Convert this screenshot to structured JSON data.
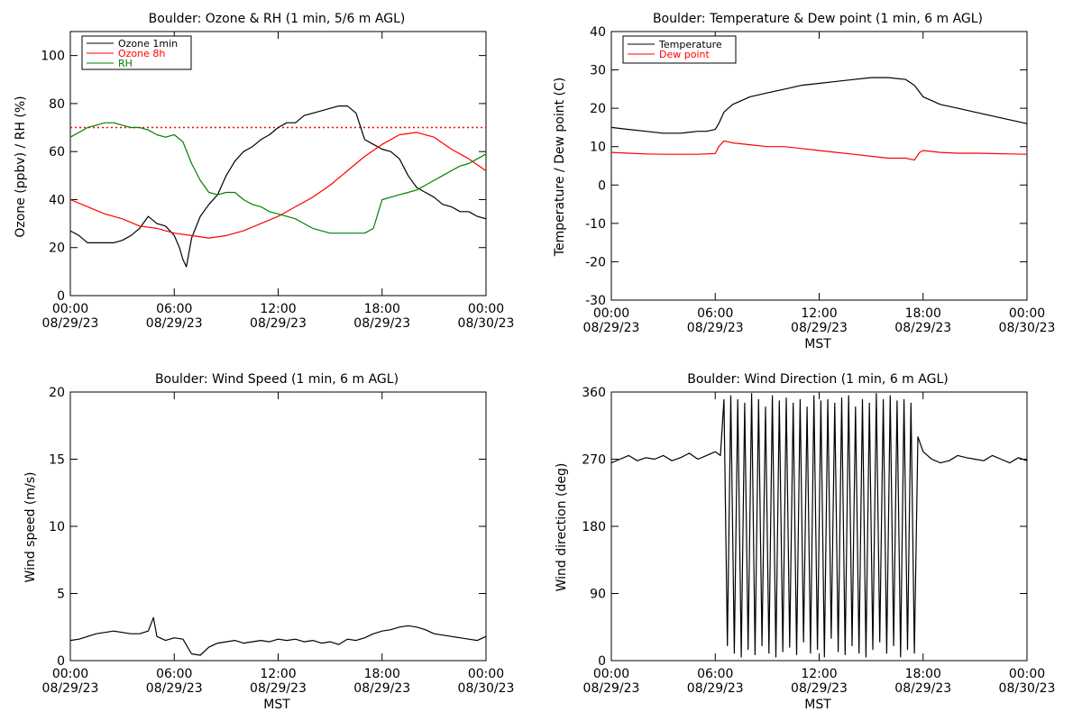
{
  "chart_data": [
    {
      "type": "line",
      "title": "Boulder: Ozone & RH (1 min, 5/6 m AGL)",
      "xlabel": "",
      "ylabel": "Ozone (ppbv) / RH (%)",
      "x_ticks": [
        {
          "time": "00:00",
          "date": "08/29/23"
        },
        {
          "time": "06:00",
          "date": "08/29/23"
        },
        {
          "time": "12:00",
          "date": "08/29/23"
        },
        {
          "time": "18:00",
          "date": "08/29/23"
        },
        {
          "time": "00:00",
          "date": "08/30/23"
        }
      ],
      "x_range_hours": [
        0,
        24
      ],
      "ylim": [
        0,
        110
      ],
      "y_ticks": [
        0,
        20,
        40,
        60,
        80,
        100
      ],
      "grid": false,
      "legend_position": "top-left",
      "reference_line": {
        "y": 70,
        "color": "#ff0000",
        "style": "dotted"
      },
      "series": [
        {
          "name": "Ozone 1min",
          "color": "#000000",
          "x_hours": [
            0,
            0.5,
            1,
            1.5,
            2,
            2.5,
            3,
            3.5,
            4,
            4.5,
            5,
            5.5,
            6,
            6.3,
            6.5,
            6.7,
            7,
            7.5,
            8,
            8.5,
            9,
            9.5,
            10,
            10.5,
            11,
            11.5,
            12,
            12.5,
            13,
            13.5,
            14,
            14.5,
            15,
            15.5,
            16,
            16.5,
            17,
            17.5,
            18,
            18.5,
            19,
            19.5,
            20,
            20.5,
            21,
            21.5,
            22,
            22.5,
            23,
            23.5,
            24
          ],
          "values": [
            27,
            25,
            22,
            22,
            22,
            22,
            23,
            25,
            28,
            33,
            30,
            29,
            25,
            20,
            15,
            12,
            24,
            33,
            38,
            42,
            50,
            56,
            60,
            62,
            65,
            67,
            70,
            72,
            72,
            75,
            76,
            77,
            78,
            79,
            79,
            76,
            65,
            63,
            61,
            60,
            57,
            50,
            45,
            43,
            41,
            38,
            37,
            35,
            35,
            33,
            32
          ]
        },
        {
          "name": "Ozone 8h",
          "color": "#ff0000",
          "x_hours": [
            0,
            1,
            2,
            3,
            4,
            5,
            6,
            7,
            8,
            9,
            10,
            11,
            12,
            13,
            14,
            15,
            16,
            17,
            18,
            19,
            20,
            21,
            22,
            23,
            24
          ],
          "values": [
            40,
            37,
            34,
            32,
            29,
            28,
            26,
            25,
            24,
            25,
            27,
            30,
            33,
            37,
            41,
            46,
            52,
            58,
            63,
            67,
            68,
            66,
            61,
            57,
            52
          ]
        },
        {
          "name": "RH",
          "color": "#008000",
          "x_hours": [
            0,
            0.5,
            1,
            1.5,
            2,
            2.5,
            3,
            3.5,
            4,
            4.5,
            5,
            5.5,
            6,
            6.5,
            7,
            7.5,
            8,
            8.5,
            9,
            9.5,
            10,
            10.5,
            11,
            11.5,
            12,
            12.5,
            13,
            13.5,
            14,
            14.5,
            15,
            15.5,
            16,
            16.5,
            17,
            17.5,
            18,
            18.5,
            19,
            19.5,
            20,
            20.5,
            21,
            21.5,
            22,
            22.5,
            23,
            23.5,
            24
          ],
          "values": [
            66,
            68,
            70,
            71,
            72,
            72,
            71,
            70,
            70,
            69,
            67,
            66,
            67,
            64,
            55,
            48,
            43,
            42,
            43,
            43,
            40,
            38,
            37,
            35,
            34,
            33,
            32,
            30,
            28,
            27,
            26,
            26,
            26,
            26,
            26,
            28,
            40,
            41,
            42,
            43,
            44,
            46,
            48,
            50,
            52,
            54,
            55,
            57,
            59
          ]
        }
      ]
    },
    {
      "type": "line",
      "title": "Boulder: Temperature & Dew point (1 min, 6 m AGL)",
      "xlabel": "MST",
      "ylabel": "Temperature / Dew point (C)",
      "x_ticks": [
        {
          "time": "00:00",
          "date": "08/29/23"
        },
        {
          "time": "06:00",
          "date": "08/29/23"
        },
        {
          "time": "12:00",
          "date": "08/29/23"
        },
        {
          "time": "18:00",
          "date": "08/29/23"
        },
        {
          "time": "00:00",
          "date": "08/30/23"
        }
      ],
      "x_range_hours": [
        0,
        24
      ],
      "ylim": [
        -30,
        40
      ],
      "y_ticks": [
        -30,
        -20,
        -10,
        0,
        10,
        20,
        30,
        40
      ],
      "grid": false,
      "legend_position": "top-left",
      "series": [
        {
          "name": "Temperature",
          "color": "#000000",
          "x_hours": [
            0,
            1,
            2,
            3,
            4,
            5,
            5.5,
            6,
            6.2,
            6.5,
            7,
            8,
            9,
            10,
            11,
            12,
            13,
            14,
            15,
            16,
            17,
            17.5,
            18,
            19,
            20,
            21,
            22,
            23,
            24
          ],
          "values": [
            15,
            14.5,
            14,
            13.5,
            13.5,
            14,
            14,
            14.5,
            16,
            19,
            21,
            23,
            24,
            25,
            26,
            26.5,
            27,
            27.5,
            28,
            28,
            27.5,
            26,
            23,
            21,
            20,
            19,
            18,
            17,
            16
          ]
        },
        {
          "name": "Dew point",
          "color": "#ff0000",
          "x_hours": [
            0,
            1,
            2,
            3,
            4,
            5,
            6,
            6.2,
            6.5,
            7,
            8,
            9,
            10,
            11,
            12,
            13,
            14,
            15,
            16,
            17,
            17.5,
            17.8,
            18,
            19,
            20,
            21,
            22,
            23,
            24
          ],
          "values": [
            8.5,
            8.3,
            8.1,
            8,
            8,
            8,
            8.2,
            10,
            11.5,
            11,
            10.5,
            10,
            10,
            9.5,
            9,
            8.5,
            8,
            7.5,
            7,
            7,
            6.5,
            8.5,
            9,
            8.5,
            8.3,
            8.3,
            8.2,
            8.1,
            8
          ]
        }
      ]
    },
    {
      "type": "line",
      "title": "Boulder: Wind Speed (1 min, 6 m AGL)",
      "xlabel": "MST",
      "ylabel": "Wind speed (m/s)",
      "x_ticks": [
        {
          "time": "00:00",
          "date": "08/29/23"
        },
        {
          "time": "06:00",
          "date": "08/29/23"
        },
        {
          "time": "12:00",
          "date": "08/29/23"
        },
        {
          "time": "18:00",
          "date": "08/29/23"
        },
        {
          "time": "00:00",
          "date": "08/30/23"
        }
      ],
      "x_range_hours": [
        0,
        24
      ],
      "ylim": [
        0,
        20
      ],
      "y_ticks": [
        0,
        5,
        10,
        15,
        20
      ],
      "grid": false,
      "series": [
        {
          "name": "",
          "color": "#000000",
          "x_hours": [
            0,
            0.5,
            1,
            1.5,
            2,
            2.5,
            3,
            3.5,
            4,
            4.5,
            4.8,
            5,
            5.5,
            6,
            6.5,
            7,
            7.5,
            8,
            8.5,
            9,
            9.5,
            10,
            10.5,
            11,
            11.5,
            12,
            12.5,
            13,
            13.5,
            14,
            14.5,
            15,
            15.5,
            16,
            16.5,
            17,
            17.5,
            18,
            18.5,
            19,
            19.5,
            20,
            20.5,
            21,
            21.5,
            22,
            22.5,
            23,
            23.5,
            24
          ],
          "values": [
            1.5,
            1.6,
            1.8,
            2.0,
            2.1,
            2.2,
            2.1,
            2.0,
            2.0,
            2.2,
            3.2,
            1.8,
            1.5,
            1.7,
            1.6,
            0.5,
            0.4,
            1.0,
            1.3,
            1.4,
            1.5,
            1.3,
            1.4,
            1.5,
            1.4,
            1.6,
            1.5,
            1.6,
            1.4,
            1.5,
            1.3,
            1.4,
            1.2,
            1.6,
            1.5,
            1.7,
            2.0,
            2.2,
            2.3,
            2.5,
            2.6,
            2.5,
            2.3,
            2.0,
            1.9,
            1.8,
            1.7,
            1.6,
            1.5,
            1.8
          ]
        }
      ]
    },
    {
      "type": "line",
      "title": "Boulder: Wind Direction (1 min, 6 m AGL)",
      "xlabel": "MST",
      "ylabel": "Wind direction (deg)",
      "x_ticks": [
        {
          "time": "00:00",
          "date": "08/29/23"
        },
        {
          "time": "06:00",
          "date": "08/29/23"
        },
        {
          "time": "12:00",
          "date": "08/29/23"
        },
        {
          "time": "18:00",
          "date": "08/29/23"
        },
        {
          "time": "00:00",
          "date": "08/30/23"
        }
      ],
      "x_range_hours": [
        0,
        24
      ],
      "ylim": [
        0,
        360
      ],
      "y_ticks": [
        0,
        90,
        180,
        270,
        360
      ],
      "grid": false,
      "series": [
        {
          "name": "",
          "color": "#000000",
          "x_hours": [
            0,
            0.5,
            1,
            1.5,
            2,
            2.5,
            3,
            3.5,
            4,
            4.5,
            5,
            5.5,
            6,
            6.3,
            6.5,
            6.7,
            6.9,
            7.1,
            7.3,
            7.5,
            7.7,
            7.9,
            8.1,
            8.3,
            8.5,
            8.7,
            8.9,
            9.1,
            9.3,
            9.5,
            9.7,
            9.9,
            10.1,
            10.3,
            10.5,
            10.7,
            10.9,
            11.1,
            11.3,
            11.5,
            11.7,
            11.9,
            12.1,
            12.3,
            12.5,
            12.7,
            12.9,
            13.1,
            13.3,
            13.5,
            13.7,
            13.9,
            14.1,
            14.3,
            14.5,
            14.7,
            14.9,
            15.1,
            15.3,
            15.5,
            15.7,
            15.9,
            16.1,
            16.3,
            16.5,
            16.7,
            16.9,
            17.1,
            17.3,
            17.5,
            17.7,
            18,
            18.5,
            19,
            19.5,
            20,
            20.5,
            21,
            21.5,
            22,
            22.5,
            23,
            23.5,
            24
          ],
          "values": [
            265,
            270,
            275,
            268,
            272,
            270,
            275,
            268,
            272,
            278,
            270,
            275,
            280,
            275,
            350,
            20,
            355,
            10,
            350,
            5,
            345,
            15,
            358,
            8,
            350,
            20,
            340,
            10,
            355,
            5,
            348,
            12,
            352,
            18,
            345,
            8,
            350,
            25,
            340,
            10,
            355,
            15,
            348,
            5,
            350,
            30,
            345,
            12,
            352,
            8,
            355,
            20,
            340,
            10,
            350,
            5,
            345,
            15,
            358,
            25,
            350,
            10,
            355,
            20,
            348,
            5,
            350,
            15,
            345,
            10,
            300,
            280,
            270,
            265,
            268,
            275,
            272,
            270,
            268,
            275,
            270,
            265,
            272,
            268
          ]
        }
      ]
    }
  ]
}
